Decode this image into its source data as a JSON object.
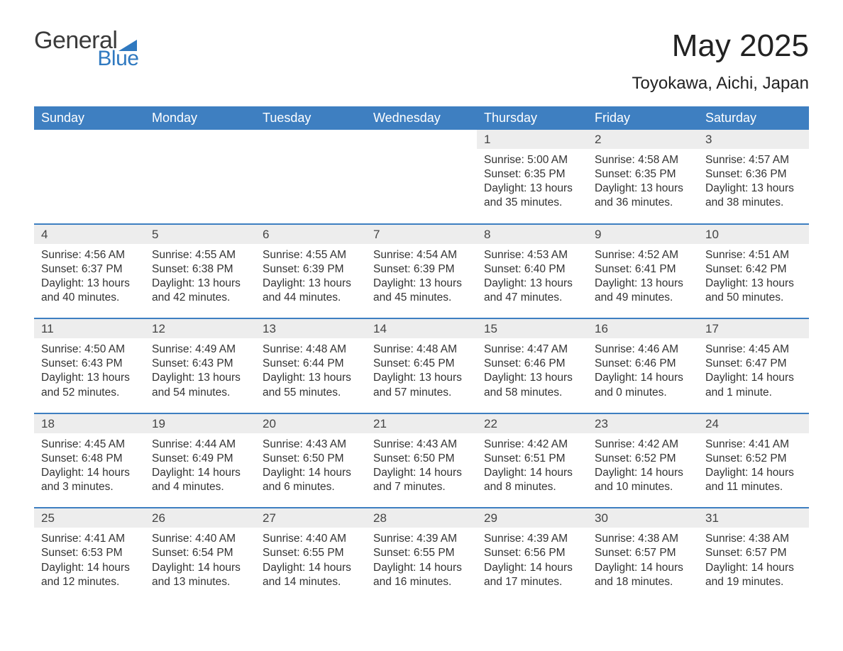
{
  "logo": {
    "word1": "General",
    "word2": "Blue",
    "mark_color": "#2f79c0",
    "text_color_primary": "#3a3a3a",
    "text_color_accent": "#2f79c0"
  },
  "title": "May 2025",
  "location": "Toyokawa, Aichi, Japan",
  "colors": {
    "header_bg": "#3e7fc1",
    "header_text": "#ffffff",
    "daynum_bg": "#ededed",
    "week_separator": "#3e7fc1",
    "body_text": "#333333",
    "page_bg": "#ffffff"
  },
  "weekdays": [
    "Sunday",
    "Monday",
    "Tuesday",
    "Wednesday",
    "Thursday",
    "Friday",
    "Saturday"
  ],
  "weeks": [
    [
      null,
      null,
      null,
      null,
      {
        "n": "1",
        "sunrise": "5:00 AM",
        "sunset": "6:35 PM",
        "daylight": "13 hours and 35 minutes."
      },
      {
        "n": "2",
        "sunrise": "4:58 AM",
        "sunset": "6:35 PM",
        "daylight": "13 hours and 36 minutes."
      },
      {
        "n": "3",
        "sunrise": "4:57 AM",
        "sunset": "6:36 PM",
        "daylight": "13 hours and 38 minutes."
      }
    ],
    [
      {
        "n": "4",
        "sunrise": "4:56 AM",
        "sunset": "6:37 PM",
        "daylight": "13 hours and 40 minutes."
      },
      {
        "n": "5",
        "sunrise": "4:55 AM",
        "sunset": "6:38 PM",
        "daylight": "13 hours and 42 minutes."
      },
      {
        "n": "6",
        "sunrise": "4:55 AM",
        "sunset": "6:39 PM",
        "daylight": "13 hours and 44 minutes."
      },
      {
        "n": "7",
        "sunrise": "4:54 AM",
        "sunset": "6:39 PM",
        "daylight": "13 hours and 45 minutes."
      },
      {
        "n": "8",
        "sunrise": "4:53 AM",
        "sunset": "6:40 PM",
        "daylight": "13 hours and 47 minutes."
      },
      {
        "n": "9",
        "sunrise": "4:52 AM",
        "sunset": "6:41 PM",
        "daylight": "13 hours and 49 minutes."
      },
      {
        "n": "10",
        "sunrise": "4:51 AM",
        "sunset": "6:42 PM",
        "daylight": "13 hours and 50 minutes."
      }
    ],
    [
      {
        "n": "11",
        "sunrise": "4:50 AM",
        "sunset": "6:43 PM",
        "daylight": "13 hours and 52 minutes."
      },
      {
        "n": "12",
        "sunrise": "4:49 AM",
        "sunset": "6:43 PM",
        "daylight": "13 hours and 54 minutes."
      },
      {
        "n": "13",
        "sunrise": "4:48 AM",
        "sunset": "6:44 PM",
        "daylight": "13 hours and 55 minutes."
      },
      {
        "n": "14",
        "sunrise": "4:48 AM",
        "sunset": "6:45 PM",
        "daylight": "13 hours and 57 minutes."
      },
      {
        "n": "15",
        "sunrise": "4:47 AM",
        "sunset": "6:46 PM",
        "daylight": "13 hours and 58 minutes."
      },
      {
        "n": "16",
        "sunrise": "4:46 AM",
        "sunset": "6:46 PM",
        "daylight": "14 hours and 0 minutes."
      },
      {
        "n": "17",
        "sunrise": "4:45 AM",
        "sunset": "6:47 PM",
        "daylight": "14 hours and 1 minute."
      }
    ],
    [
      {
        "n": "18",
        "sunrise": "4:45 AM",
        "sunset": "6:48 PM",
        "daylight": "14 hours and 3 minutes."
      },
      {
        "n": "19",
        "sunrise": "4:44 AM",
        "sunset": "6:49 PM",
        "daylight": "14 hours and 4 minutes."
      },
      {
        "n": "20",
        "sunrise": "4:43 AM",
        "sunset": "6:50 PM",
        "daylight": "14 hours and 6 minutes."
      },
      {
        "n": "21",
        "sunrise": "4:43 AM",
        "sunset": "6:50 PM",
        "daylight": "14 hours and 7 minutes."
      },
      {
        "n": "22",
        "sunrise": "4:42 AM",
        "sunset": "6:51 PM",
        "daylight": "14 hours and 8 minutes."
      },
      {
        "n": "23",
        "sunrise": "4:42 AM",
        "sunset": "6:52 PM",
        "daylight": "14 hours and 10 minutes."
      },
      {
        "n": "24",
        "sunrise": "4:41 AM",
        "sunset": "6:52 PM",
        "daylight": "14 hours and 11 minutes."
      }
    ],
    [
      {
        "n": "25",
        "sunrise": "4:41 AM",
        "sunset": "6:53 PM",
        "daylight": "14 hours and 12 minutes."
      },
      {
        "n": "26",
        "sunrise": "4:40 AM",
        "sunset": "6:54 PM",
        "daylight": "14 hours and 13 minutes."
      },
      {
        "n": "27",
        "sunrise": "4:40 AM",
        "sunset": "6:55 PM",
        "daylight": "14 hours and 14 minutes."
      },
      {
        "n": "28",
        "sunrise": "4:39 AM",
        "sunset": "6:55 PM",
        "daylight": "14 hours and 16 minutes."
      },
      {
        "n": "29",
        "sunrise": "4:39 AM",
        "sunset": "6:56 PM",
        "daylight": "14 hours and 17 minutes."
      },
      {
        "n": "30",
        "sunrise": "4:38 AM",
        "sunset": "6:57 PM",
        "daylight": "14 hours and 18 minutes."
      },
      {
        "n": "31",
        "sunrise": "4:38 AM",
        "sunset": "6:57 PM",
        "daylight": "14 hours and 19 minutes."
      }
    ]
  ],
  "labels": {
    "sunrise": "Sunrise:",
    "sunset": "Sunset:",
    "daylight": "Daylight:"
  }
}
